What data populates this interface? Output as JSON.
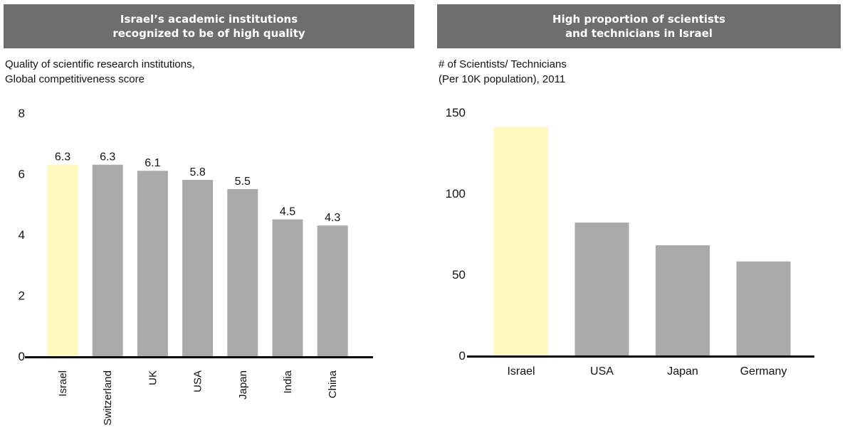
{
  "chart_data": [
    {
      "type": "bar",
      "banner": [
        "Israel’s academic institutions",
        "recognized to be of high quality"
      ],
      "subtitle": [
        "Quality of scientific research institutions,",
        "Global competitiveness score"
      ],
      "categories": [
        "Israel",
        "Switzerland",
        "UK",
        "USA",
        "Japan",
        "India",
        "China"
      ],
      "values": [
        6.3,
        6.3,
        6.1,
        5.8,
        5.5,
        4.5,
        4.3
      ],
      "value_labels": [
        "6.3",
        "6.3",
        "6.1",
        "5.8",
        "5.5",
        "4.5",
        "4.3"
      ],
      "highlight_index": 0,
      "yticks": [
        0,
        2,
        4,
        6,
        8
      ],
      "ylim": [
        0,
        8
      ],
      "grid": false,
      "category_label_orientation": "vertical"
    },
    {
      "type": "bar",
      "banner": [
        "High proportion of scientists",
        "and technicians in Israel"
      ],
      "subtitle": [
        "# of Scientists/ Technicians",
        "(Per 10K population), 2011"
      ],
      "categories": [
        "Israel",
        "USA",
        "Japan",
        "Germany"
      ],
      "values": [
        141,
        82,
        68,
        58
      ],
      "highlight_index": 0,
      "yticks": [
        0,
        50,
        100,
        150
      ],
      "ylim": [
        0,
        150
      ],
      "grid": false,
      "category_label_orientation": "horizontal"
    }
  ],
  "colors": {
    "banner": "#6e6e6e",
    "bar": "#aaaaaa",
    "highlight": "#fff9bf",
    "axis": "#000000"
  }
}
